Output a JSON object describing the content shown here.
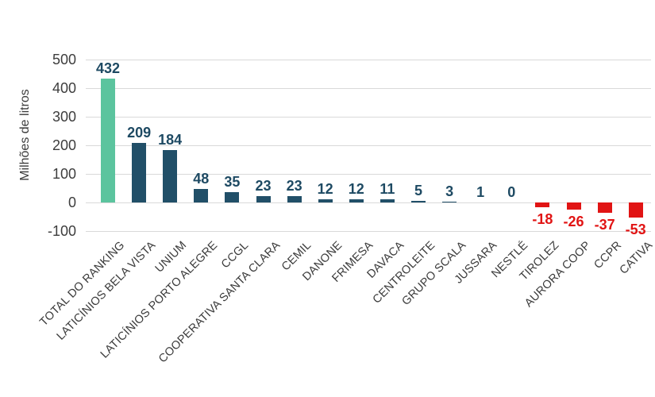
{
  "chart_data": {
    "type": "bar",
    "title": "",
    "xlabel": "",
    "ylabel": "Milhões de litros",
    "ylim": [
      -100,
      500
    ],
    "yticks": [
      500,
      400,
      300,
      200,
      100,
      0,
      -100
    ],
    "grid": "horizontal-only",
    "legend": "none",
    "categories": [
      "TOTAL DO RANKING",
      "LATICÍNIOS BELA VISTA",
      "UNIUM",
      "LATICÍNIOS PORTO ALEGRE",
      "CCGL",
      "COOPERATIVA SANTA CLARA",
      "CEMIL",
      "DANONE",
      "FRIMESA",
      "DAVACA",
      "CENTROLEITE",
      "GRUPO SCALA",
      "JUSSARA",
      "NESTLÉ",
      "TIROLEZ",
      "AURORA COOP",
      "CCPR",
      "CATIVA"
    ],
    "values": [
      432,
      209,
      184,
      48,
      35,
      23,
      23,
      12,
      12,
      11,
      5,
      3,
      1,
      0,
      -18,
      -26,
      -37,
      -53
    ],
    "highlight_first_as_total": true,
    "colors": {
      "total_bar": "#5BC49E",
      "positive_bar": "#214F68",
      "negative_bar": "#E11414",
      "positive_label": "#1E4A63",
      "negative_label": "#E11414",
      "axis_text": "#3D3D3D",
      "category_text": "#3A3A3A",
      "gridline": "#D9D9D9"
    }
  }
}
